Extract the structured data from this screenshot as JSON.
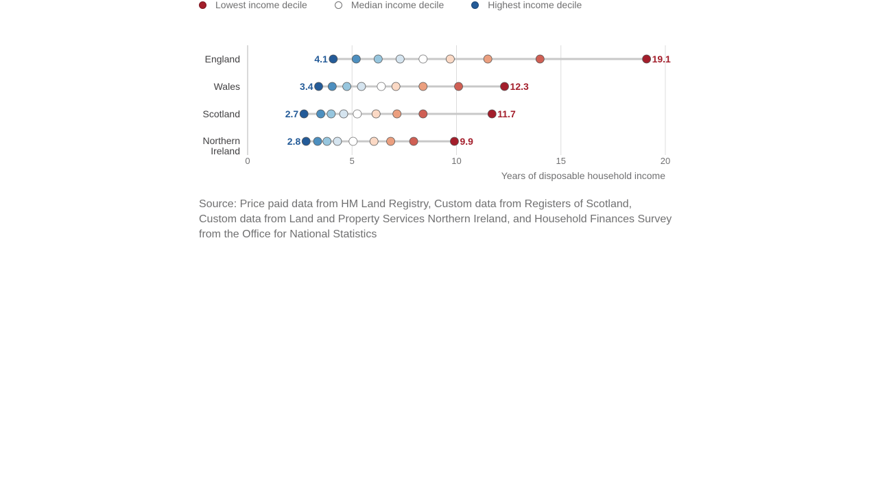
{
  "legend": {
    "items": [
      {
        "label": "Lowest income decile",
        "color": "#a31e2b",
        "border": "#7a1620"
      },
      {
        "label": "Median income decile",
        "color": "#ffffff",
        "border": "#707071"
      },
      {
        "label": "Highest income decile",
        "color": "#245b98",
        "border": "#1b4676"
      }
    ]
  },
  "chart_data": {
    "type": "dot-range",
    "xlabel": "Years of disposable household income",
    "xlim": [
      0,
      20
    ],
    "xticks": [
      "0",
      "5",
      "10",
      "15",
      "20"
    ],
    "grid": true,
    "legend_position": "top-left",
    "decile_colors": [
      "#a31e2b",
      "#cf5f54",
      "#eb9f7f",
      "#fbd9c5",
      "#ffffff",
      "#d5e4ef",
      "#97c6de",
      "#4d8fbf",
      "#245b98"
    ],
    "rows": [
      {
        "category": "England",
        "label_lines": [
          "England"
        ],
        "values": [
          19.1,
          14.0,
          11.5,
          9.7,
          8.4,
          7.3,
          6.25,
          5.2,
          4.1
        ],
        "min_label": "4.1",
        "max_label": "19.1"
      },
      {
        "category": "Wales",
        "label_lines": [
          "Wales"
        ],
        "values": [
          12.3,
          10.1,
          8.4,
          7.1,
          6.4,
          5.45,
          4.75,
          4.05,
          3.4
        ],
        "min_label": "3.4",
        "max_label": "12.3"
      },
      {
        "category": "Scotland",
        "label_lines": [
          "Scotland"
        ],
        "values": [
          11.7,
          8.4,
          7.15,
          6.15,
          5.25,
          4.6,
          4.0,
          3.5,
          2.7
        ],
        "min_label": "2.7",
        "max_label": "11.7"
      },
      {
        "category": "Northern Ireland",
        "label_lines": [
          "Northern",
          "Ireland"
        ],
        "values": [
          9.9,
          7.95,
          6.85,
          6.05,
          5.05,
          4.3,
          3.8,
          3.35,
          2.8
        ],
        "min_label": "2.8",
        "max_label": "9.9"
      }
    ],
    "colors": {
      "min_label": "#245b98",
      "max_label": "#a31e2b",
      "range_line": "#c8c8c8"
    }
  },
  "source": "Source: Price paid data from HM Land Registry, Custom data from Registers of Scotland, Custom data from Land and Property Services Northern Ireland, and Household Finances Survey from the Office for National Statistics"
}
